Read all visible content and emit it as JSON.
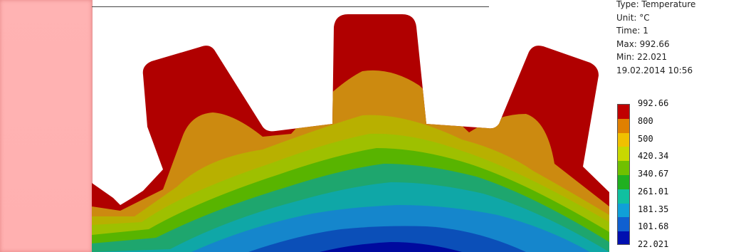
{
  "info": {
    "type": "Type: Temperature",
    "unit": "Unit: °C",
    "time": "Time: 1",
    "max": "Max: 992.66",
    "min": "Min: 22.021",
    "date": "19.02.2014 10:56"
  },
  "legend": {
    "labels": [
      "992.66",
      "800",
      "500",
      "420.34",
      "340.67",
      "261.01",
      "181.35",
      "101.68",
      "22.021"
    ],
    "colors": [
      "#c00000",
      "#e08000",
      "#f0c000",
      "#c8d800",
      "#70c000",
      "#20b020",
      "#10c0a0",
      "#10a0d8",
      "#1060d0",
      "#0010b0"
    ]
  },
  "contour_colors": [
    "#b00000",
    "#cc8a10",
    "#b8b000",
    "#9ec000",
    "#58b400",
    "#1ea66e",
    "#0fa7a7",
    "#1586cc",
    "#0b4fb8",
    "#000a9e"
  ]
}
